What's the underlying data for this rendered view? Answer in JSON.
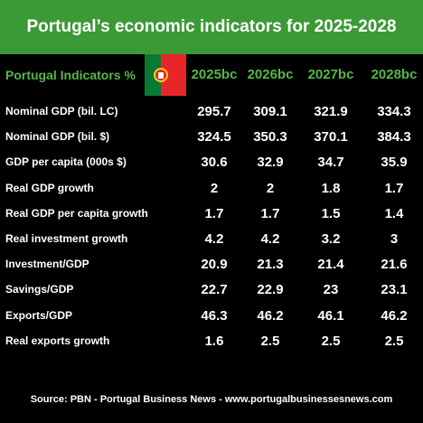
{
  "title": "Portugal’s economic indicators for 2025-2028",
  "header_label": "Portugal Indicators %",
  "flag_icon": "portugal-flag-icon",
  "colors": {
    "title_bg": "#3c9a36",
    "header_text": "#56b946",
    "background": "#000000"
  },
  "chart_data": {
    "type": "table",
    "columns": [
      "2025bc",
      "2026bc",
      "2027bc",
      "2028bc"
    ],
    "rows": [
      {
        "label": "Nominal GDP (bil. LC)",
        "values": [
          "295.7",
          "309.1",
          "321.9",
          "334.3"
        ]
      },
      {
        "label": "Nominal GDP (bil. $)",
        "values": [
          "324.5",
          "350.3",
          "370.1",
          "384.3"
        ]
      },
      {
        "label": "GDP per capita (000s $)",
        "values": [
          "30.6",
          "32.9",
          "34.7",
          "35.9"
        ]
      },
      {
        "label": "Real GDP growth",
        "values": [
          "2",
          "2",
          "1.8",
          "1.7"
        ]
      },
      {
        "label": "Real GDP per capita growth",
        "values": [
          "1.7",
          "1.7",
          "1.5",
          "1.4"
        ]
      },
      {
        "label": "Real investment growth",
        "values": [
          "4.2",
          "4.2",
          "3.2",
          "3"
        ]
      },
      {
        "label": "Investment/GDP",
        "values": [
          "20.9",
          "21.3",
          "21.4",
          "21.6"
        ]
      },
      {
        "label": "Savings/GDP",
        "values": [
          "22.7",
          "22.9",
          "23",
          "23.1"
        ]
      },
      {
        "label": "Exports/GDP",
        "values": [
          "46.3",
          "46.2",
          "46.1",
          "46.2"
        ]
      },
      {
        "label": "Real exports growth",
        "values": [
          "1.6",
          "2.5",
          "2.5",
          "2.5"
        ]
      }
    ]
  },
  "source": "Source: PBN - Portugal Business News - www.portugalbusinessesnews.com"
}
